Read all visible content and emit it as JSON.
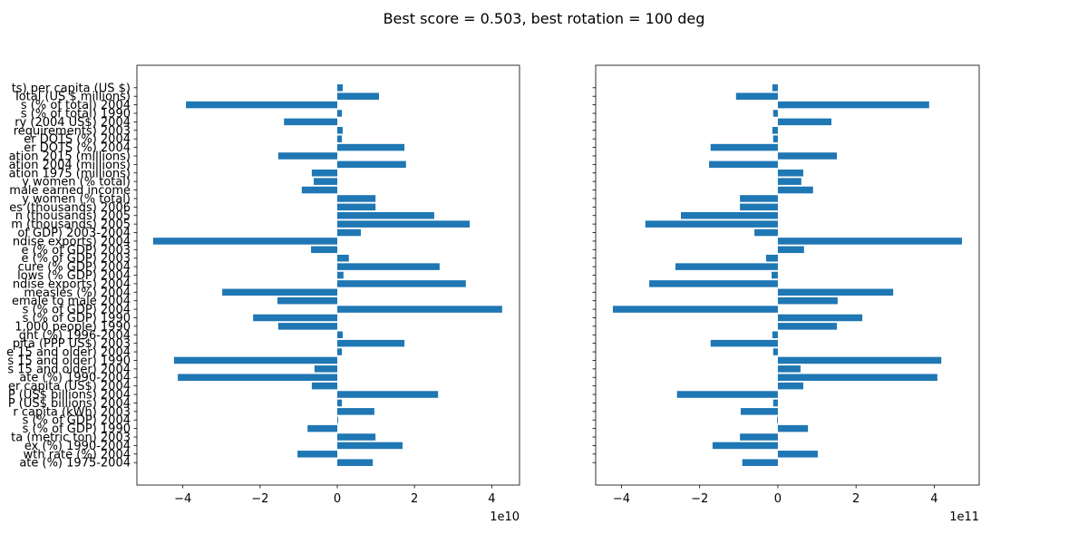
{
  "title": "Best score = 0.503, best rotation = 100 deg",
  "chart_data": [
    {
      "type": "barh",
      "color": "#1f77b4",
      "offset_label": "1e10",
      "categories": [
        "ts) per capita (US $)",
        "Total (US $ millions)",
        "s (% of total) 2004",
        "s (% of total) 1990",
        "ry (2004 US$) 2004",
        "requirements) 2003",
        "er DOTS (%) 2004",
        "er DOTS (%) 2004",
        "ation 2015 (millions)",
        "ation 2004 (millions)",
        "ation 1975 (millions)",
        "y women (% total)",
        "male earned income",
        "y women (% total)",
        "es (thousands) 2006",
        "n (thousands) 2005",
        "m (thousands) 2005",
        "of GDP) 2003-2004",
        "ndise exports) 2004",
        "e (% of GDP) 2003",
        "e (% of GDP) 2003",
        "cure (% GDP) 2004",
        "lows (% GDP) 2004",
        "ndise exports) 2004",
        "measles (%) 2004",
        "emale to male 2004",
        "s (% of GDP) 2004",
        "s (% of GDP) 1990",
        "1,000 people) 1990",
        "ght (%) 1996-2004",
        "pita (PPP US$) 2003",
        "e 15 and older) 2004",
        "s 15 and older) 1990",
        "s 15 and older) 2004",
        "ate (%) 1990-2004",
        "er capita (US$) 2004",
        "P (US$ billions) 2004",
        "P (US$ billions) 2004",
        "r capita (kWh) 2003",
        "s (% of GDP) 2004",
        "s (% of GDP) 1990",
        "ta (metric ton) 2003",
        "ex (%) 1990-2004",
        "wth rate (%) 2004",
        "ate (%) 1975-2004"
      ],
      "values": [
        0.14,
        1.08,
        -3.92,
        0.12,
        -1.38,
        0.14,
        0.12,
        1.74,
        -1.53,
        1.78,
        -0.66,
        -0.61,
        -0.92,
        0.99,
        0.99,
        2.51,
        3.43,
        0.61,
        -4.77,
        -0.68,
        0.3,
        2.65,
        0.16,
        3.33,
        -2.98,
        -1.55,
        4.27,
        -2.18,
        -1.53,
        0.14,
        1.74,
        0.12,
        -4.23,
        -0.59,
        -4.13,
        -0.66,
        2.61,
        0.12,
        0.96,
        0.02,
        -0.77,
        0.99,
        1.69,
        -1.03,
        0.92
      ],
      "xlim": [
        -5.19,
        4.72
      ],
      "xticks": [
        {
          "value": -4,
          "label": "−4"
        },
        {
          "value": -2,
          "label": "−2"
        },
        0,
        2,
        4
      ]
    },
    {
      "type": "barh",
      "color": "#1f77b4",
      "offset_label": "1e11",
      "values": [
        -0.14,
        -1.07,
        3.87,
        -0.12,
        1.37,
        -0.14,
        -0.12,
        -1.72,
        1.51,
        -1.76,
        0.65,
        0.6,
        0.9,
        -0.97,
        -0.97,
        -2.48,
        -3.39,
        -0.6,
        4.71,
        0.67,
        -0.3,
        -2.62,
        -0.16,
        -3.29,
        2.95,
        1.53,
        -4.22,
        2.16,
        1.51,
        -0.14,
        -1.72,
        -0.12,
        4.18,
        0.58,
        4.08,
        0.65,
        -2.58,
        -0.12,
        -0.95,
        -0.02,
        0.77,
        -0.97,
        -1.67,
        1.02,
        -0.91
      ],
      "xlim": [
        -4.66,
        5.15
      ],
      "xticks": [
        {
          "value": -4,
          "label": "−4"
        },
        {
          "value": -2,
          "label": "−2"
        },
        0,
        2,
        4
      ]
    }
  ]
}
